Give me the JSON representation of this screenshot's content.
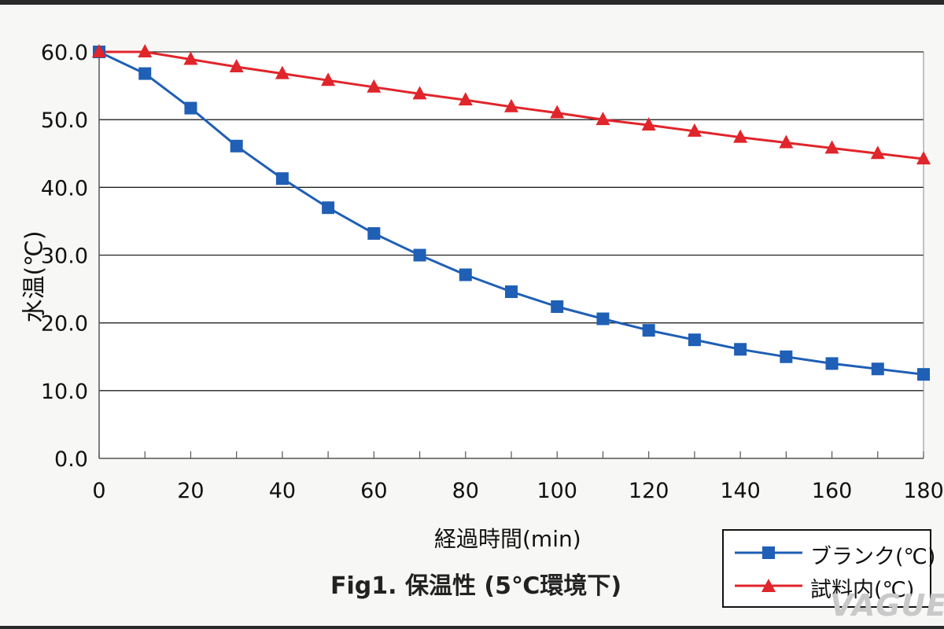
{
  "chart_data": {
    "type": "line",
    "title": "Fig1. 保温性 (5℃環境下)",
    "xlabel": "経過時間(min)",
    "ylabel": "水温(℃)",
    "x": [
      0,
      10,
      20,
      30,
      40,
      50,
      60,
      70,
      80,
      90,
      100,
      110,
      120,
      130,
      140,
      150,
      160,
      170,
      180
    ],
    "xticks": [
      0,
      20,
      40,
      60,
      80,
      100,
      120,
      140,
      160,
      180
    ],
    "xtick_labels": [
      "0",
      "20",
      "40",
      "60",
      "80",
      "100",
      "120",
      "140",
      "160",
      "180"
    ],
    "yticks": [
      0,
      10,
      20,
      30,
      40,
      50,
      60
    ],
    "ytick_labels": [
      "0.0",
      "10.0",
      "20.0",
      "30.0",
      "40.0",
      "50.0",
      "60.0"
    ],
    "xlim": [
      0,
      180
    ],
    "ylim": [
      0,
      60
    ],
    "grid": "horizontal",
    "legend_position": "bottom-right",
    "series": [
      {
        "name": "ブランク(℃)",
        "color": "#1f5fb5",
        "marker": "square",
        "values": [
          60.0,
          56.8,
          51.7,
          46.1,
          41.3,
          37.0,
          33.2,
          30.0,
          27.1,
          24.6,
          22.4,
          20.6,
          18.9,
          17.5,
          16.1,
          15.0,
          14.0,
          13.2,
          12.4
        ]
      },
      {
        "name": "試料内(℃)",
        "color": "#e0252b",
        "marker": "triangle",
        "values": [
          60.0,
          60.0,
          58.9,
          57.8,
          56.8,
          55.8,
          54.8,
          53.8,
          52.9,
          51.9,
          51.0,
          50.0,
          49.2,
          48.3,
          47.4,
          46.6,
          45.8,
          45.0,
          44.2
        ]
      }
    ]
  },
  "watermark": "VAGUE"
}
